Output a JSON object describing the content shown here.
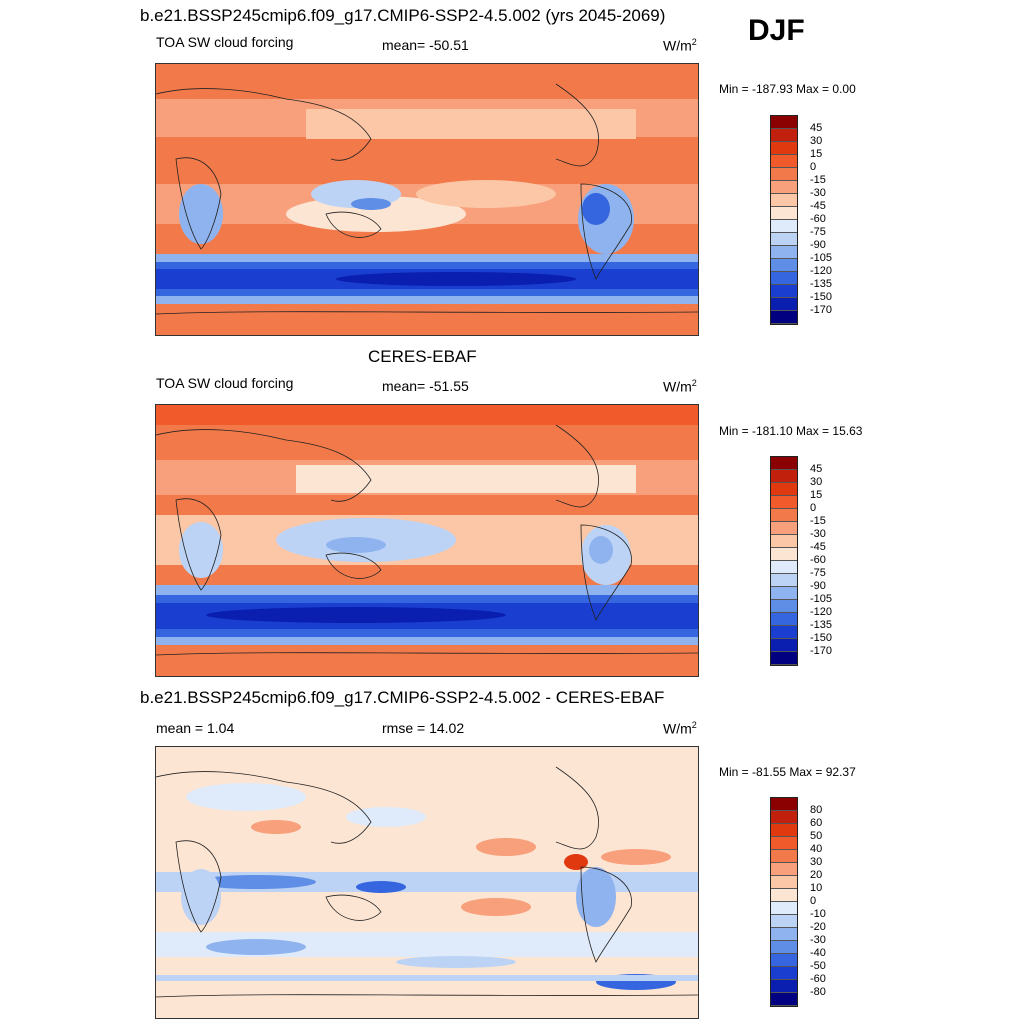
{
  "season": "DJF",
  "panels": [
    {
      "title": "b.e21.BSSP245cmip6.f09_g17.CMIP6-SSP2-4.5.002 (yrs 2045-2069)",
      "variable": "TOA SW cloud forcing",
      "stat": "mean= -50.51",
      "units": "W/m",
      "units_exp": "2",
      "minmax": "Min = -187.93 Max =   0.00",
      "levels": [
        "45",
        "30",
        "15",
        "0",
        "-15",
        "-30",
        "-45",
        "-60",
        "-75",
        "-90",
        "-105",
        "-120",
        "-135",
        "-150",
        "-170"
      ]
    },
    {
      "title": "CERES-EBAF",
      "variable": "TOA SW cloud forcing",
      "stat": "mean= -51.55",
      "units": "W/m",
      "units_exp": "2",
      "minmax": "Min = -181.10 Max =  15.63",
      "levels": [
        "45",
        "30",
        "15",
        "0",
        "-15",
        "-30",
        "-45",
        "-60",
        "-75",
        "-90",
        "-105",
        "-120",
        "-135",
        "-150",
        "-170"
      ]
    },
    {
      "title": "b.e21.BSSP245cmip6.f09_g17.CMIP6-SSP2-4.5.002 - CERES-EBAF",
      "stat_left": "mean =   1.04",
      "stat": "rmse =  14.02",
      "units": "W/m",
      "units_exp": "2",
      "minmax": "Min = -81.55 Max =  92.37",
      "levels": [
        "80",
        "60",
        "50",
        "40",
        "30",
        "20",
        "10",
        "0",
        "-10",
        "-20",
        "-30",
        "-40",
        "-50",
        "-60",
        "-80"
      ]
    }
  ],
  "colors": {
    "abs_scale": [
      "#8b0000",
      "#c1200c",
      "#e0390f",
      "#f15b2b",
      "#f27a4a",
      "#f7a07b",
      "#fbc7a6",
      "#fde5d3",
      "#dfebfa",
      "#bcd3f5",
      "#8fb3ee",
      "#5f8ee6",
      "#3565df",
      "#1a3fd0",
      "#0a1fb0",
      "#000080"
    ],
    "diff_scale": [
      "#8b0000",
      "#c1200c",
      "#e0390f",
      "#f15b2b",
      "#f27a4a",
      "#f7a07b",
      "#fbc7a6",
      "#fde5d3",
      "#dfebfa",
      "#bcd3f5",
      "#8fb3ee",
      "#5f8ee6",
      "#3565df",
      "#1a3fd0",
      "#0a1fb0",
      "#000080"
    ]
  }
}
